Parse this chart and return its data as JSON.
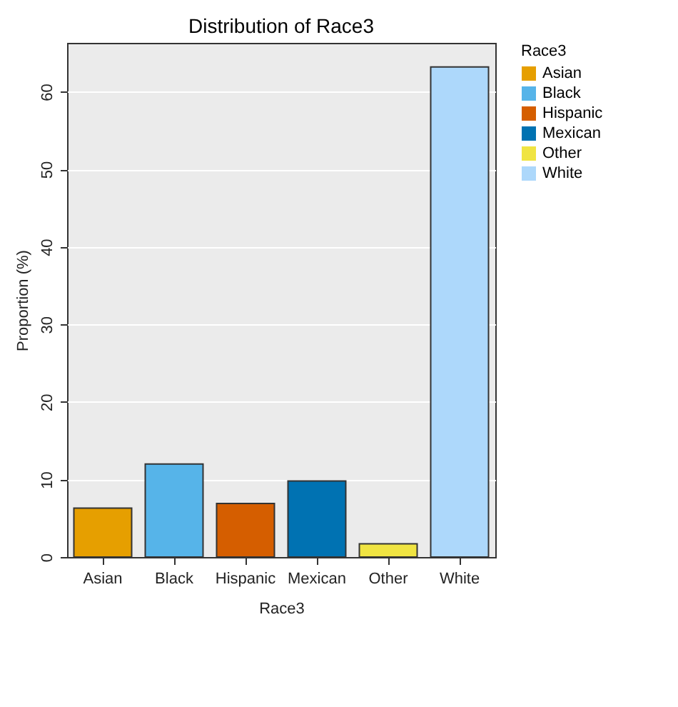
{
  "chart_data": {
    "type": "bar",
    "title": "Distribution of Race3",
    "xlabel": "Race3",
    "ylabel": "Proportion (%)",
    "legend_title": "Race3",
    "categories": [
      "Asian",
      "Black",
      "Hispanic",
      "Mexican",
      "Other",
      "White"
    ],
    "series": [
      {
        "name": "Asian",
        "color": "#e69f00",
        "values": [
          6.3,
          null,
          null,
          null,
          null,
          null
        ]
      },
      {
        "name": "Black",
        "color": "#56b4e9",
        "values": [
          null,
          12.0,
          null,
          null,
          null,
          null
        ]
      },
      {
        "name": "Hispanic",
        "color": "#d55e00",
        "values": [
          null,
          null,
          6.9,
          null,
          null,
          null
        ]
      },
      {
        "name": "Mexican",
        "color": "#0072b2",
        "values": [
          null,
          null,
          null,
          9.8,
          null,
          null
        ]
      },
      {
        "name": "Other",
        "color": "#f0e442",
        "values": [
          null,
          null,
          null,
          null,
          1.7,
          null
        ]
      },
      {
        "name": "White",
        "color": "#add8fb",
        "values": [
          null,
          null,
          null,
          null,
          null,
          63.2
        ]
      }
    ],
    "ylim": [
      0,
      66.3
    ],
    "yticks": [
      0,
      10,
      20,
      30,
      40,
      50,
      60
    ],
    "grid": "y",
    "legend": "right"
  }
}
